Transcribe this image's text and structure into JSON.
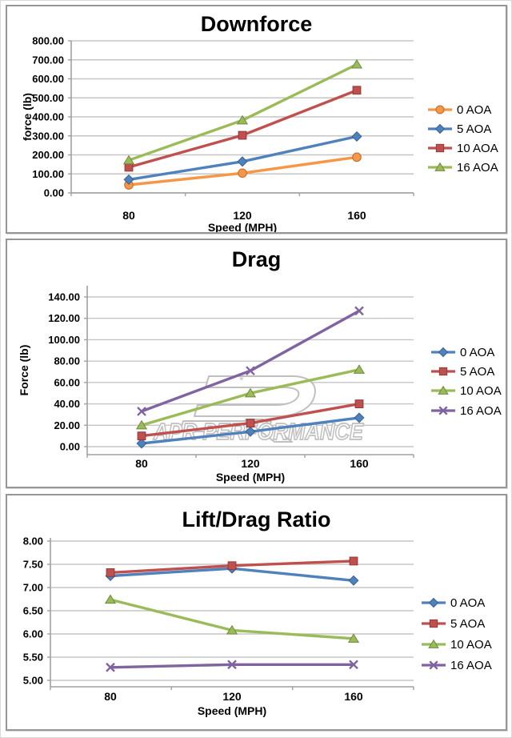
{
  "page": {
    "outer_border_color": "#d9d9d9",
    "panel_border_color": "#969696",
    "background": "#ffffff"
  },
  "axis_style": {
    "grid_color": "#c6c6c6",
    "axis_color": "#a0a0a0",
    "tick_label_color": "#000000"
  },
  "chart_data": [
    {
      "type": "line",
      "title": "Downforce",
      "xlabel": "Speed (MPH)",
      "ylabel": "force (lb)",
      "categories": [
        "80",
        "120",
        "160"
      ],
      "x_values": [
        80,
        120,
        160
      ],
      "ylim": [
        0,
        800
      ],
      "ytick_step": 100,
      "ytick_labels": [
        "800.00",
        "700.00",
        "600.00",
        "500.00",
        "400.00",
        "300.00",
        "200.00",
        "100.00",
        "0.00"
      ],
      "grid": true,
      "legend_position": "right",
      "series": [
        {
          "name": "0 AOA",
          "marker": "circle",
          "color": "#F79646",
          "values": [
            42,
            104,
            188
          ]
        },
        {
          "name": "5 AOA",
          "marker": "diamond",
          "color": "#4F81BD",
          "values": [
            70,
            165,
            297
          ]
        },
        {
          "name": "10 AOA",
          "marker": "square",
          "color": "#C0504D",
          "values": [
            135,
            303,
            540
          ]
        },
        {
          "name": "16 AOA",
          "marker": "triangle",
          "color": "#9BBB59",
          "values": [
            172,
            382,
            676
          ]
        }
      ]
    },
    {
      "type": "line",
      "title": "Drag",
      "xlabel": "Speed (MPH)",
      "ylabel": "Force (lb)",
      "categories": [
        "80",
        "120",
        "160"
      ],
      "x_values": [
        80,
        120,
        160
      ],
      "ylim": [
        0,
        140
      ],
      "ytick_step": 20,
      "ytick_labels": [
        "140.00",
        "120.00",
        "100.00",
        "80.00",
        "60.00",
        "40.00",
        "20.00",
        "0.00"
      ],
      "grid": true,
      "legend_position": "right",
      "watermark": {
        "text": "APR PERFORMANCE",
        "logo": "apr-logo",
        "color": "#bdbdbd"
      },
      "series": [
        {
          "name": "0 AOA",
          "marker": "diamond",
          "color": "#4F81BD",
          "values": [
            3,
            14,
            27
          ]
        },
        {
          "name": "5 AOA",
          "marker": "square",
          "color": "#C0504D",
          "values": [
            10,
            22,
            40
          ]
        },
        {
          "name": "10 AOA",
          "marker": "triangle",
          "color": "#9BBB59",
          "values": [
            20,
            50,
            72
          ]
        },
        {
          "name": "16 AOA",
          "marker": "x",
          "color": "#8064A2",
          "values": [
            33,
            71,
            127
          ]
        }
      ]
    },
    {
      "type": "line",
      "title": "Lift/Drag Ratio",
      "xlabel": "Speed (MPH)",
      "ylabel": "",
      "categories": [
        "80",
        "120",
        "160"
      ],
      "x_values": [
        80,
        120,
        160
      ],
      "ylim": [
        5,
        8
      ],
      "ytick_step": 0.5,
      "ytick_labels": [
        "8.00",
        "7.50",
        "7.00",
        "6.50",
        "6.00",
        "5.50",
        "5.00"
      ],
      "grid": true,
      "legend_position": "right",
      "series": [
        {
          "name": "0 AOA",
          "marker": "diamond",
          "color": "#4F81BD",
          "values": [
            7.25,
            7.41,
            7.15
          ]
        },
        {
          "name": "5 AOA",
          "marker": "square",
          "color": "#C0504D",
          "values": [
            7.32,
            7.47,
            7.57
          ]
        },
        {
          "name": "10 AOA",
          "marker": "triangle",
          "color": "#9BBB59",
          "values": [
            6.74,
            6.08,
            5.9
          ]
        },
        {
          "name": "16 AOA",
          "marker": "x",
          "color": "#8064A2",
          "values": [
            5.28,
            5.34,
            5.34
          ]
        }
      ]
    }
  ]
}
